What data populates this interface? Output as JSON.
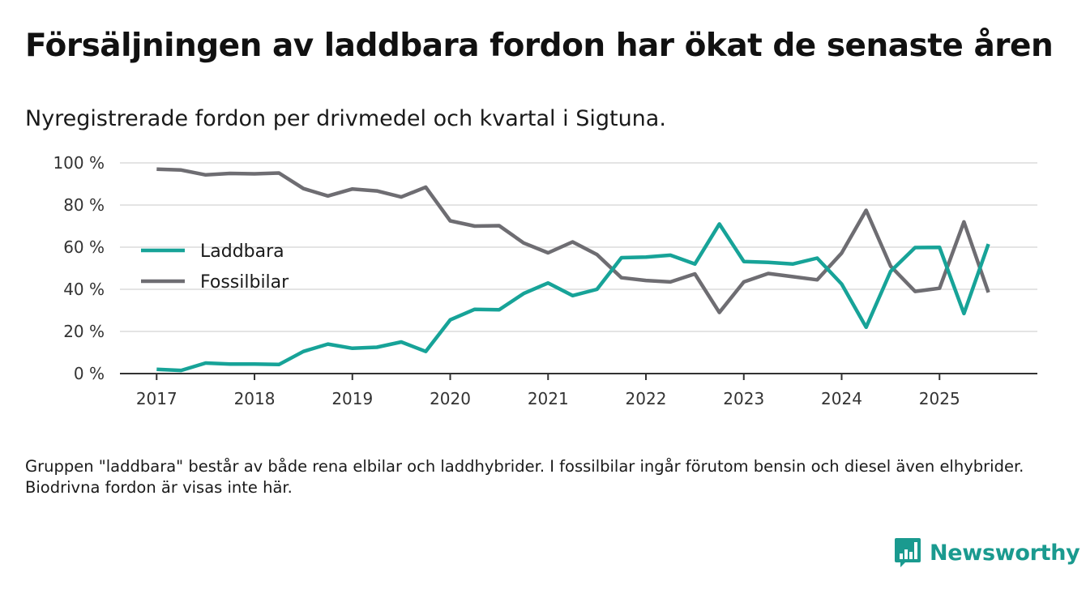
{
  "header": {
    "title": "Försäljningen av laddbara fordon har ökat de senaste åren",
    "subtitle": "Nyregistrerade fordon per drivmedel och kvartal i Sigtuna."
  },
  "footnote": "Gruppen \"laddbara\" består av både rena elbilar och laddhybrider. I fossilbilar ingår förutom bensin och diesel även elhybrider. Biodrivna fordon är visas inte här.",
  "brand": {
    "name": "Newsworthy",
    "color": "#1a9a8f"
  },
  "chart_data": {
    "type": "line",
    "title": "Försäljningen av laddbara fordon har ökat de senaste åren",
    "subtitle": "Nyregistrerade fordon per drivmedel och kvartal i Sigtuna.",
    "xlabel": "",
    "ylabel": "",
    "xlim": [
      2016.625,
      2026.0
    ],
    "ylim": [
      0,
      100
    ],
    "x_ticks": [
      2017,
      2018,
      2019,
      2020,
      2021,
      2022,
      2023,
      2024,
      2025
    ],
    "x_tick_labels": [
      "2017",
      "2018",
      "2019",
      "2020",
      "2021",
      "2022",
      "2023",
      "2024",
      "2025"
    ],
    "y_ticks": [
      0,
      20,
      40,
      60,
      80,
      100
    ],
    "y_tick_labels": [
      "0 %",
      "20 %",
      "40 %",
      "60 %",
      "80 %",
      "100 %"
    ],
    "grid": true,
    "legend_position": "left-middle",
    "x": [
      2017.0,
      2017.25,
      2017.5,
      2017.75,
      2018.0,
      2018.25,
      2018.5,
      2018.75,
      2019.0,
      2019.25,
      2019.5,
      2019.75,
      2020.0,
      2020.25,
      2020.5,
      2020.75,
      2021.0,
      2021.25,
      2021.5,
      2021.75,
      2022.0,
      2022.25,
      2022.5,
      2022.75,
      2023.0,
      2023.25,
      2023.5,
      2023.75,
      2024.0,
      2024.25,
      2024.5,
      2024.75,
      2025.0,
      2025.25,
      2025.5
    ],
    "series": [
      {
        "name": "Laddbara",
        "color": "#17a398",
        "values": [
          2,
          1.5,
          5,
          4.5,
          4.5,
          4.3,
          10.5,
          14,
          12,
          12.5,
          15,
          10.5,
          25.5,
          30.5,
          30.3,
          38,
          43,
          37,
          40,
          55,
          55.3,
          56.2,
          52,
          71,
          53.2,
          52.8,
          52,
          54.8,
          42.5,
          22,
          48.5,
          59.8,
          59.9,
          28.5,
          61.5
        ]
      },
      {
        "name": "Fossilbilar",
        "color": "#6e6d72",
        "values": [
          97,
          96.6,
          94.3,
          95,
          94.8,
          95.2,
          87.8,
          84.3,
          87.6,
          86.7,
          83.8,
          88.5,
          72.5,
          70,
          70.2,
          62,
          57.3,
          62.5,
          56.5,
          45.5,
          44.2,
          43.5,
          47.3,
          29,
          43.5,
          47.5,
          46,
          44.5,
          57.2,
          77.5,
          51,
          39,
          40.5,
          72,
          38.5
        ]
      }
    ]
  }
}
